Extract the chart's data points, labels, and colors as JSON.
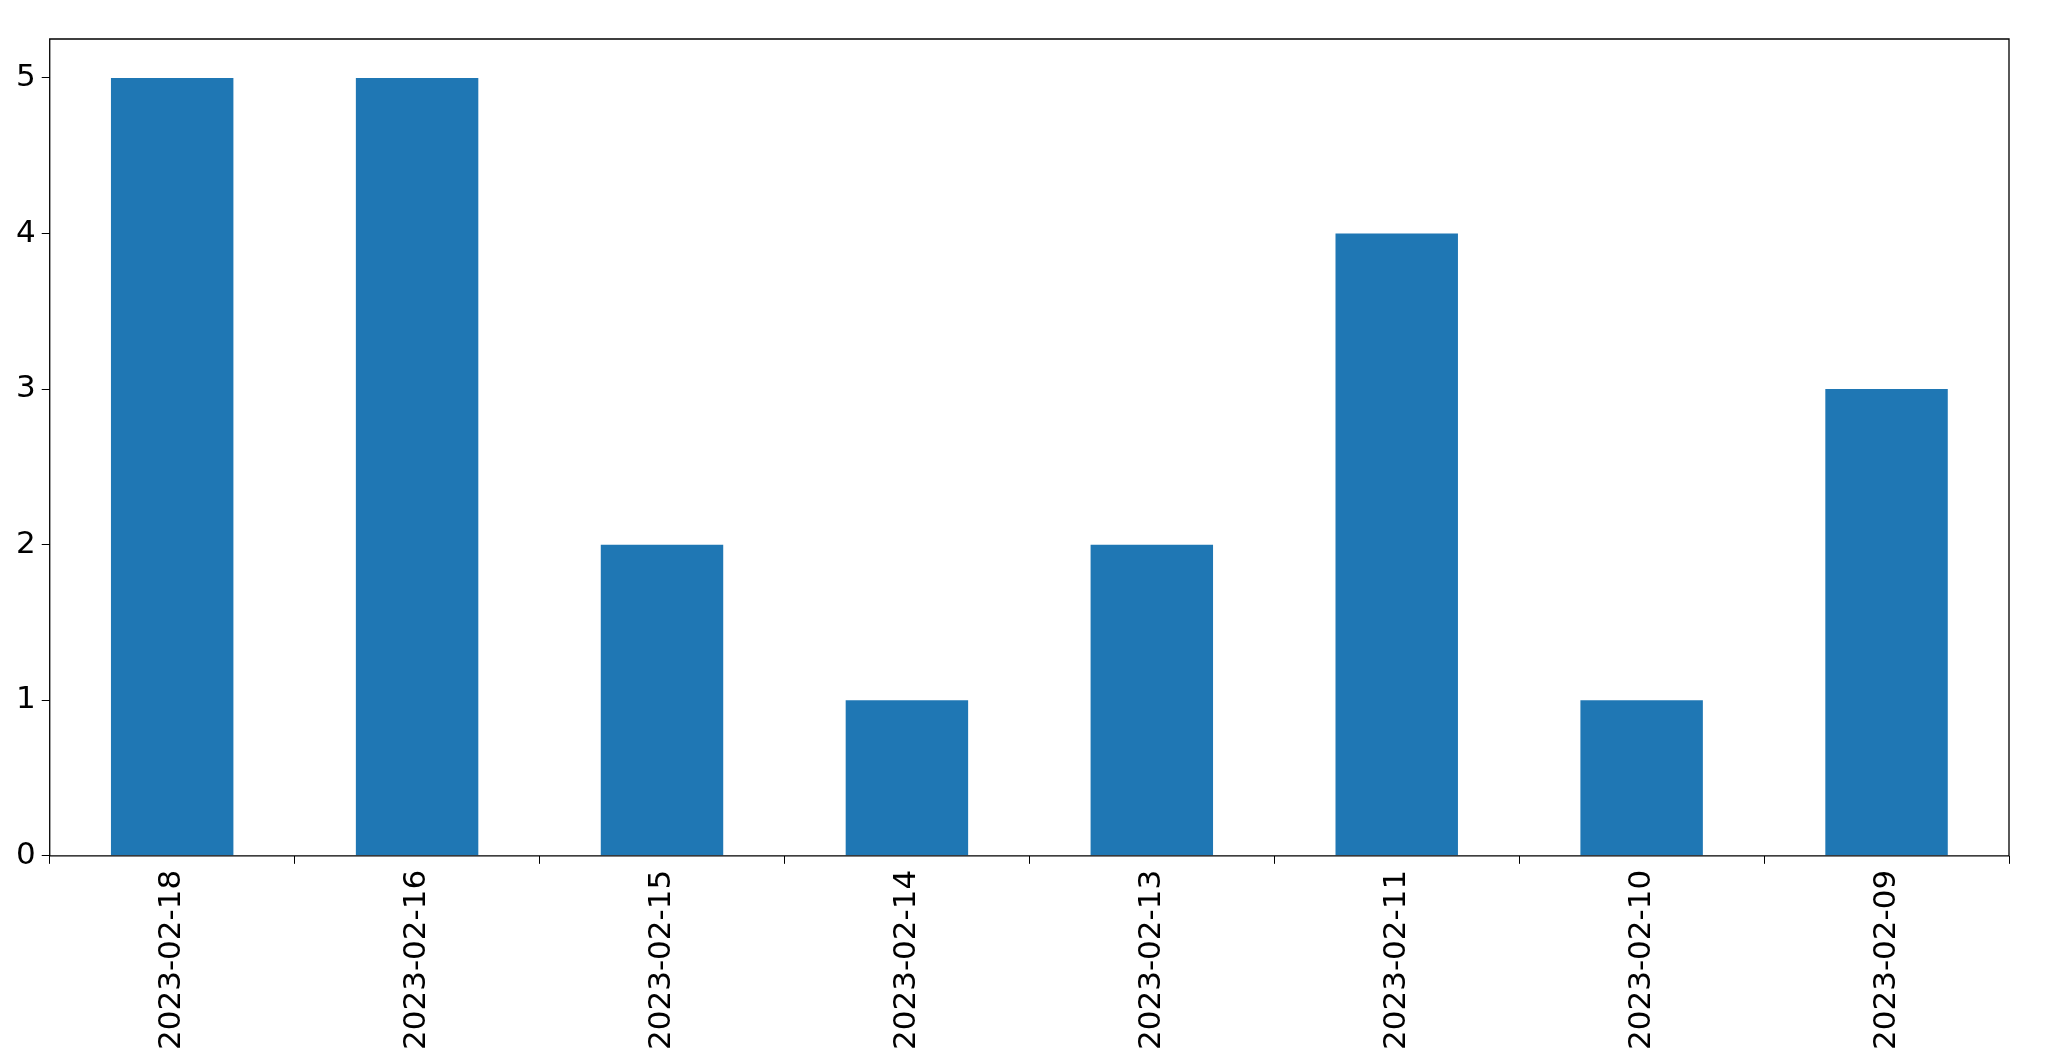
{
  "chart_data": {
    "type": "bar",
    "categories": [
      "2023-02-18",
      "2023-02-16",
      "2023-02-15",
      "2023-02-14",
      "2023-02-13",
      "2023-02-11",
      "2023-02-10",
      "2023-02-09"
    ],
    "values": [
      5,
      5,
      2,
      1,
      2,
      4,
      1,
      3
    ],
    "color": "#1f77b4",
    "ylim": [
      0,
      5.25
    ],
    "yticks": [
      0,
      1,
      2,
      3,
      4,
      5
    ]
  }
}
